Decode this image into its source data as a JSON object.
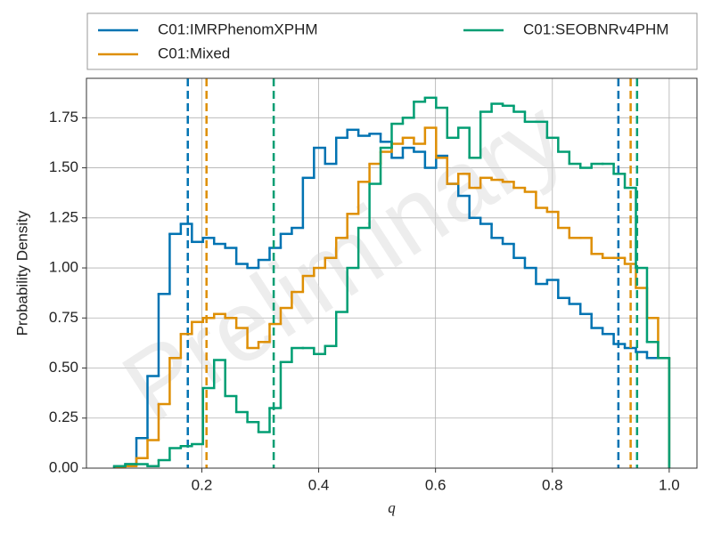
{
  "chart_data": {
    "type": "histogram",
    "xlabel": "q",
    "ylabel": "Probability Density",
    "watermark": "Preliminary",
    "bins": [
      0.05,
      0.069,
      0.088,
      0.107,
      0.126,
      0.145,
      0.164,
      0.183,
      0.202,
      0.221,
      0.24,
      0.259,
      0.278,
      0.297,
      0.316,
      0.335,
      0.354,
      0.373,
      0.392,
      0.411,
      0.43,
      0.449,
      0.468,
      0.487,
      0.506,
      0.525,
      0.544,
      0.563,
      0.582,
      0.601,
      0.62,
      0.639,
      0.658,
      0.677,
      0.696,
      0.715,
      0.734,
      0.753,
      0.772,
      0.791,
      0.81,
      0.829,
      0.848,
      0.867,
      0.886,
      0.905,
      0.924,
      0.943,
      0.962,
      0.981,
      1.0
    ],
    "series": [
      {
        "name": "C01:IMRPhenomXPHM",
        "color": "#0173b2",
        "quantiles": [
          0.176,
          0.913
        ],
        "values": [
          0.01,
          0.02,
          0.15,
          0.46,
          0.87,
          1.17,
          1.22,
          1.13,
          1.15,
          1.12,
          1.1,
          1.02,
          1.0,
          1.04,
          1.1,
          1.17,
          1.2,
          1.45,
          1.6,
          1.52,
          1.65,
          1.69,
          1.66,
          1.67,
          1.63,
          1.55,
          1.6,
          1.58,
          1.5,
          1.56,
          1.42,
          1.36,
          1.25,
          1.22,
          1.15,
          1.12,
          1.05,
          1.0,
          0.92,
          0.94,
          0.85,
          0.82,
          0.77,
          0.7,
          0.67,
          0.62,
          0.6,
          0.58,
          0.55,
          0.55
        ]
      },
      {
        "name": "C01:Mixed",
        "color": "#de8f05",
        "quantiles": [
          0.208,
          0.934
        ],
        "values": [
          0.005,
          0.01,
          0.05,
          0.14,
          0.32,
          0.55,
          0.67,
          0.73,
          0.75,
          0.77,
          0.75,
          0.7,
          0.6,
          0.63,
          0.72,
          0.8,
          0.88,
          0.96,
          1.0,
          1.05,
          1.15,
          1.27,
          1.43,
          1.52,
          1.58,
          1.62,
          1.65,
          1.62,
          1.7,
          1.55,
          1.42,
          1.47,
          1.4,
          1.45,
          1.44,
          1.43,
          1.4,
          1.38,
          1.3,
          1.28,
          1.2,
          1.15,
          1.15,
          1.07,
          1.05,
          1.05,
          1.02,
          0.9,
          0.75,
          0.55
        ]
      },
      {
        "name": "C01:SEOBNRv4PHM",
        "color": "#029e73",
        "quantiles": [
          0.323,
          0.945
        ],
        "values": [
          0.01,
          0.02,
          0.02,
          0.01,
          0.04,
          0.1,
          0.11,
          0.12,
          0.4,
          0.54,
          0.36,
          0.28,
          0.23,
          0.18,
          0.3,
          0.53,
          0.6,
          0.6,
          0.57,
          0.61,
          0.78,
          1.0,
          1.2,
          1.42,
          1.6,
          1.72,
          1.75,
          1.83,
          1.85,
          1.8,
          1.65,
          1.7,
          1.55,
          1.78,
          1.82,
          1.81,
          1.78,
          1.73,
          1.73,
          1.65,
          1.58,
          1.52,
          1.5,
          1.52,
          1.52,
          1.47,
          1.4,
          1.0,
          0.63,
          0.55
        ]
      }
    ],
    "xlim": [
      0.0025,
      1.0475
    ],
    "xticks": [
      0.2,
      0.4,
      0.6,
      0.8,
      {
        "value": 1,
        "label": "1.0"
      }
    ],
    "ylim": [
      0,
      1.947
    ],
    "yticks": [
      {
        "value": 0,
        "label": "0.00"
      },
      0.25,
      {
        "value": 0.5,
        "label": "0.50"
      },
      0.75,
      {
        "value": 1,
        "label": "1.00"
      },
      1.25,
      {
        "value": 1.5,
        "label": "1.50"
      },
      1.75
    ],
    "grid": true,
    "legend": "top"
  }
}
